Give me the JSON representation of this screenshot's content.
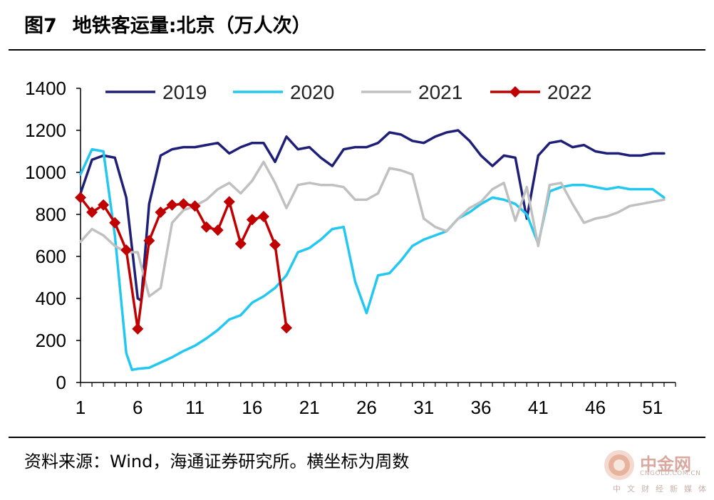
{
  "header": {
    "figure_number": "图7",
    "title": "地铁客运量:北京（万人次）"
  },
  "source": "资料来源：Wind，海通证券研究所。横坐标为周数",
  "watermark": {
    "name": "中金网",
    "domain": "CNGOLD.COM.CN",
    "tagline": "中文财经新媒体"
  },
  "chart_data": {
    "type": "line",
    "title": "地铁客运量:北京（万人次）",
    "xlabel": "",
    "ylabel": "",
    "xlim": [
      1,
      53
    ],
    "ylim": [
      0,
      1400
    ],
    "x_ticks": [
      1,
      6,
      11,
      16,
      21,
      26,
      31,
      36,
      41,
      46,
      51
    ],
    "y_ticks": [
      0,
      200,
      400,
      600,
      800,
      1000,
      1200,
      1400
    ],
    "legend_position": "top",
    "series": [
      {
        "name": "2019",
        "color": "#1f1f78",
        "marker": false,
        "points": [
          [
            1,
            900
          ],
          [
            2,
            1060
          ],
          [
            3,
            1080
          ],
          [
            4,
            1070
          ],
          [
            5,
            880
          ],
          [
            6,
            400
          ],
          [
            6.3,
            390
          ],
          [
            7,
            850
          ],
          [
            8,
            1080
          ],
          [
            9,
            1110
          ],
          [
            10,
            1120
          ],
          [
            11,
            1120
          ],
          [
            12,
            1130
          ],
          [
            13,
            1140
          ],
          [
            14,
            1090
          ],
          [
            15,
            1120
          ],
          [
            16,
            1140
          ],
          [
            17,
            1140
          ],
          [
            18,
            1050
          ],
          [
            19,
            1170
          ],
          [
            20,
            1110
          ],
          [
            21,
            1120
          ],
          [
            22,
            1070
          ],
          [
            23,
            1030
          ],
          [
            24,
            1110
          ],
          [
            25,
            1120
          ],
          [
            26,
            1120
          ],
          [
            27,
            1140
          ],
          [
            28,
            1190
          ],
          [
            29,
            1180
          ],
          [
            30,
            1150
          ],
          [
            31,
            1140
          ],
          [
            32,
            1170
          ],
          [
            33,
            1190
          ],
          [
            34,
            1200
          ],
          [
            35,
            1150
          ],
          [
            36,
            1080
          ],
          [
            37,
            1030
          ],
          [
            38,
            1080
          ],
          [
            39,
            1070
          ],
          [
            40,
            780
          ],
          [
            41,
            1080
          ],
          [
            42,
            1140
          ],
          [
            43,
            1150
          ],
          [
            44,
            1120
          ],
          [
            45,
            1130
          ],
          [
            46,
            1100
          ],
          [
            47,
            1090
          ],
          [
            48,
            1090
          ],
          [
            49,
            1080
          ],
          [
            50,
            1080
          ],
          [
            51,
            1090
          ],
          [
            52,
            1090
          ]
        ]
      },
      {
        "name": "2020",
        "color": "#22c8f0",
        "marker": false,
        "points": [
          [
            1,
            990
          ],
          [
            2,
            1110
          ],
          [
            3,
            1100
          ],
          [
            4,
            700
          ],
          [
            5,
            140
          ],
          [
            5.5,
            60
          ],
          [
            6,
            65
          ],
          [
            7,
            70
          ],
          [
            8,
            95
          ],
          [
            9,
            120
          ],
          [
            10,
            150
          ],
          [
            11,
            175
          ],
          [
            12,
            210
          ],
          [
            13,
            250
          ],
          [
            14,
            300
          ],
          [
            15,
            320
          ],
          [
            16,
            380
          ],
          [
            17,
            410
          ],
          [
            18,
            450
          ],
          [
            19,
            510
          ],
          [
            20,
            620
          ],
          [
            21,
            640
          ],
          [
            22,
            680
          ],
          [
            23,
            730
          ],
          [
            24,
            740
          ],
          [
            25,
            480
          ],
          [
            26,
            330
          ],
          [
            27,
            510
          ],
          [
            28,
            520
          ],
          [
            29,
            580
          ],
          [
            30,
            650
          ],
          [
            31,
            680
          ],
          [
            32,
            700
          ],
          [
            33,
            720
          ],
          [
            34,
            780
          ],
          [
            35,
            810
          ],
          [
            36,
            850
          ],
          [
            37,
            880
          ],
          [
            38,
            870
          ],
          [
            39,
            850
          ],
          [
            40,
            800
          ],
          [
            41,
            660
          ],
          [
            42,
            910
          ],
          [
            43,
            930
          ],
          [
            44,
            940
          ],
          [
            45,
            940
          ],
          [
            46,
            930
          ],
          [
            47,
            920
          ],
          [
            48,
            930
          ],
          [
            49,
            920
          ],
          [
            50,
            920
          ],
          [
            51,
            920
          ],
          [
            52,
            880
          ]
        ]
      },
      {
        "name": "2021",
        "color": "#c0c0c0",
        "marker": false,
        "points": [
          [
            1,
            670
          ],
          [
            2,
            730
          ],
          [
            3,
            700
          ],
          [
            4,
            650
          ],
          [
            5,
            620
          ],
          [
            6,
            620
          ],
          [
            7,
            410
          ],
          [
            8,
            450
          ],
          [
            9,
            760
          ],
          [
            10,
            820
          ],
          [
            11,
            840
          ],
          [
            12,
            870
          ],
          [
            13,
            920
          ],
          [
            14,
            950
          ],
          [
            15,
            900
          ],
          [
            16,
            960
          ],
          [
            17,
            1050
          ],
          [
            18,
            950
          ],
          [
            19,
            830
          ],
          [
            20,
            940
          ],
          [
            21,
            950
          ],
          [
            22,
            940
          ],
          [
            23,
            940
          ],
          [
            24,
            930
          ],
          [
            25,
            870
          ],
          [
            26,
            870
          ],
          [
            27,
            900
          ],
          [
            28,
            1020
          ],
          [
            29,
            1010
          ],
          [
            30,
            990
          ],
          [
            31,
            780
          ],
          [
            32,
            740
          ],
          [
            33,
            720
          ],
          [
            34,
            780
          ],
          [
            35,
            830
          ],
          [
            36,
            860
          ],
          [
            37,
            920
          ],
          [
            38,
            950
          ],
          [
            39,
            770
          ],
          [
            40,
            930
          ],
          [
            41,
            650
          ],
          [
            42,
            940
          ],
          [
            43,
            950
          ],
          [
            44,
            850
          ],
          [
            45,
            760
          ],
          [
            46,
            780
          ],
          [
            47,
            790
          ],
          [
            48,
            810
          ],
          [
            49,
            840
          ],
          [
            50,
            850
          ],
          [
            51,
            860
          ],
          [
            52,
            870
          ]
        ]
      },
      {
        "name": "2022",
        "color": "#c00000",
        "marker": true,
        "points": [
          [
            1,
            880
          ],
          [
            2,
            810
          ],
          [
            3,
            845
          ],
          [
            4,
            760
          ],
          [
            5,
            630
          ],
          [
            6,
            255
          ],
          [
            7,
            675
          ],
          [
            8,
            810
          ],
          [
            9,
            845
          ],
          [
            10,
            850
          ],
          [
            11,
            840
          ],
          [
            12,
            740
          ],
          [
            13,
            725
          ],
          [
            14,
            860
          ],
          [
            15,
            660
          ],
          [
            16,
            775
          ],
          [
            17,
            790
          ],
          [
            18,
            655
          ],
          [
            19,
            260
          ]
        ]
      }
    ]
  }
}
